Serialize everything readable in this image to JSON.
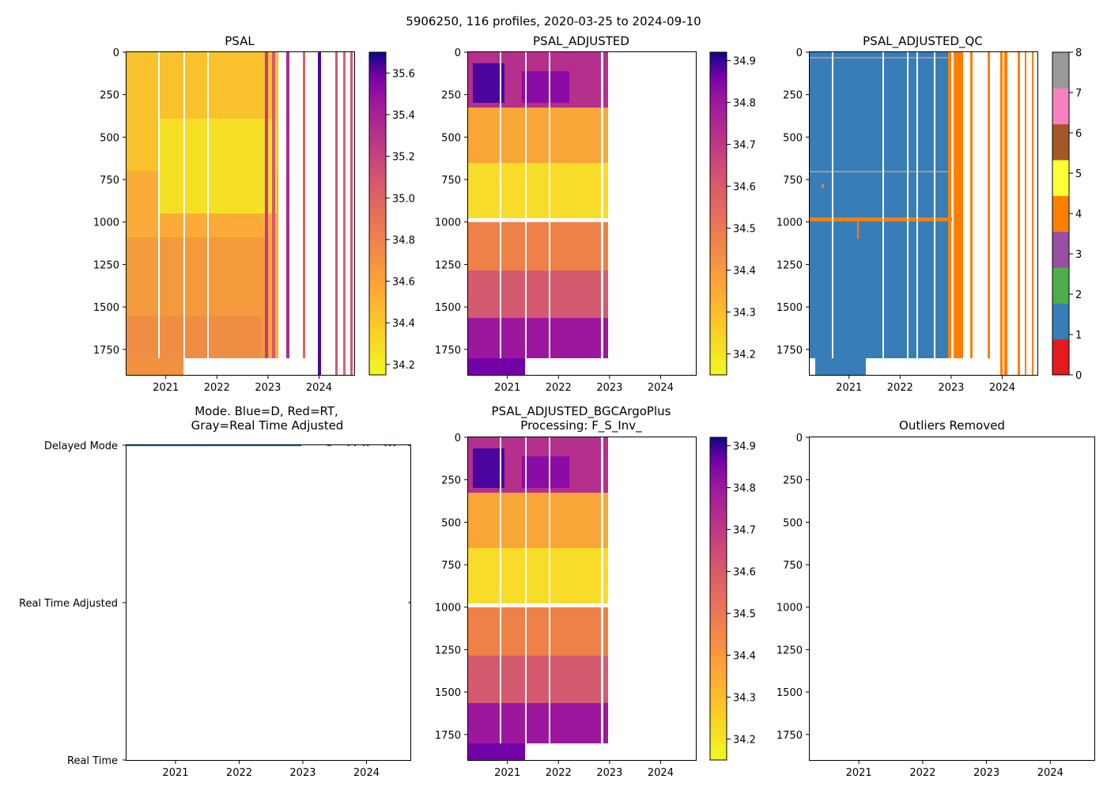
{
  "figure_title": "5906250, 116 profiles, 2020-03-25 to 2024-09-10",
  "chart_data": [
    {
      "id": "psal",
      "type": "heatmap",
      "title": "PSAL",
      "xlabel": "",
      "ylabel": "",
      "x_range": [
        2020.23,
        2024.69
      ],
      "y_range": [
        0,
        1900
      ],
      "x_ticks": [
        "2021",
        "2022",
        "2023",
        "2024"
      ],
      "y_ticks": [
        "0",
        "250",
        "500",
        "750",
        "1000",
        "1250",
        "1500",
        "1750"
      ],
      "colormap": "plasma_r",
      "colorbar_range": [
        34.15,
        35.7
      ],
      "colorbar_ticks": [
        "34.2",
        "34.4",
        "34.6",
        "34.8",
        "35.0",
        "35.2",
        "35.4",
        "35.6"
      ]
    },
    {
      "id": "psal_adj",
      "type": "heatmap",
      "title": "PSAL_ADJUSTED",
      "xlabel": "",
      "ylabel": "",
      "x_range": [
        2020.23,
        2024.69
      ],
      "y_range": [
        0,
        1900
      ],
      "x_ticks": [
        "2021",
        "2022",
        "2023",
        "2024"
      ],
      "y_ticks": [
        "0",
        "250",
        "500",
        "750",
        "1000",
        "1250",
        "1500",
        "1750"
      ],
      "colormap": "plasma_r",
      "colorbar_range": [
        34.15,
        34.92
      ],
      "colorbar_ticks": [
        "34.2",
        "34.3",
        "34.4",
        "34.5",
        "34.6",
        "34.7",
        "34.8",
        "34.9"
      ]
    },
    {
      "id": "psal_qc",
      "type": "heatmap",
      "title": "PSAL_ADJUSTED_QC",
      "xlabel": "",
      "ylabel": "",
      "x_range": [
        2020.23,
        2024.69
      ],
      "y_range": [
        0,
        1900
      ],
      "x_ticks": [
        "2021",
        "2022",
        "2023",
        "2024"
      ],
      "y_ticks": [
        "0",
        "250",
        "500",
        "750",
        "1000",
        "1250",
        "1500",
        "1750"
      ],
      "colorbar_ticks": [
        "0",
        "1",
        "2",
        "3",
        "4",
        "5",
        "6",
        "7",
        "8"
      ],
      "qc_colors": [
        "#e41a1c",
        "#377eb8",
        "#4daf4a",
        "#984ea3",
        "#ff7f00",
        "#ffff33",
        "#a65628",
        "#f781bf",
        "#999999"
      ]
    },
    {
      "id": "mode",
      "type": "scatter",
      "title": "Mode. Blue=D, Red=RT,",
      "title2": "Gray=Real Time Adjusted",
      "xlabel": "",
      "ylabel": "",
      "x_range": [
        2020.23,
        2024.69
      ],
      "x_ticks": [
        "2021",
        "2022",
        "2023",
        "2024"
      ],
      "y_categories": [
        "Delayed Mode",
        "Real Time Adjusted",
        "Real Time"
      ],
      "point_color": "#1f77b4"
    },
    {
      "id": "bgc",
      "type": "heatmap",
      "title": "PSAL_ADJUSTED_BGCArgoPlus",
      "title2": "Processing: F_S_Inv_",
      "xlabel": "",
      "ylabel": "",
      "x_range": [
        2020.23,
        2024.69
      ],
      "y_range": [
        0,
        1900
      ],
      "x_ticks": [
        "2021",
        "2022",
        "2023",
        "2024"
      ],
      "y_ticks": [
        "0",
        "250",
        "500",
        "750",
        "1000",
        "1250",
        "1500",
        "1750"
      ],
      "colormap": "plasma_r",
      "colorbar_range": [
        34.15,
        34.92
      ],
      "colorbar_ticks": [
        "34.2",
        "34.3",
        "34.4",
        "34.5",
        "34.6",
        "34.7",
        "34.8",
        "34.9"
      ]
    },
    {
      "id": "outliers",
      "type": "scatter",
      "title": "Outliers Removed",
      "xlabel": "",
      "ylabel": "",
      "x_range": [
        2020.23,
        2024.69
      ],
      "y_range": [
        0,
        1900
      ],
      "x_ticks": [
        "2021",
        "2022",
        "2023",
        "2024"
      ],
      "y_ticks": [
        "0",
        "250",
        "500",
        "750",
        "1000",
        "1250",
        "1500",
        "1750"
      ]
    }
  ]
}
